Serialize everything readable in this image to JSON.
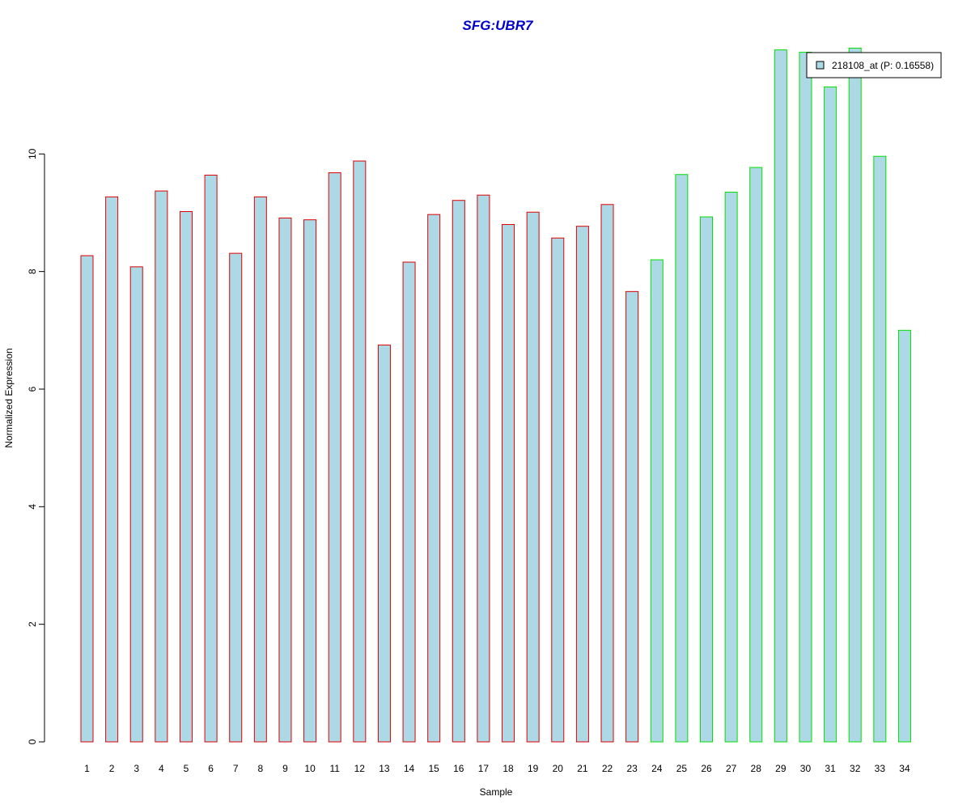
{
  "chart_data": {
    "type": "bar",
    "title": "SFG:UBR7",
    "xlabel": "Sample",
    "ylabel": "Normalized Expression",
    "categories": [
      "1",
      "2",
      "3",
      "4",
      "5",
      "6",
      "7",
      "8",
      "9",
      "10",
      "11",
      "12",
      "13",
      "14",
      "15",
      "16",
      "17",
      "18",
      "19",
      "20",
      "21",
      "22",
      "23",
      "24",
      "25",
      "26",
      "27",
      "28",
      "29",
      "30",
      "31",
      "32",
      "33",
      "34"
    ],
    "series": [
      {
        "name": "218108_at (P: 0.16558)",
        "values": [
          8.27,
          9.27,
          8.08,
          9.37,
          9.02,
          9.64,
          8.31,
          9.27,
          8.91,
          8.88,
          9.68,
          9.88,
          6.75,
          8.16,
          8.97,
          9.21,
          9.3,
          8.8,
          9.01,
          8.57,
          8.77,
          9.14,
          7.66,
          8.2,
          9.65,
          8.93,
          9.35,
          9.77,
          11.77,
          11.73,
          11.14,
          11.8,
          9.96,
          7.0
        ]
      }
    ],
    "groups": [
      {
        "range": [
          1,
          23
        ],
        "outline_color": "#e00000"
      },
      {
        "range": [
          24,
          34
        ],
        "outline_color": "#00e000"
      }
    ],
    "yticks": [
      0,
      2,
      4,
      6,
      8,
      10
    ],
    "ylim": [
      0,
      11.8
    ],
    "legend_position": "top-right",
    "grid": false
  },
  "colors": {
    "bar_fill": "#add8e6",
    "title": "#0000cc",
    "axis": "#000000"
  }
}
